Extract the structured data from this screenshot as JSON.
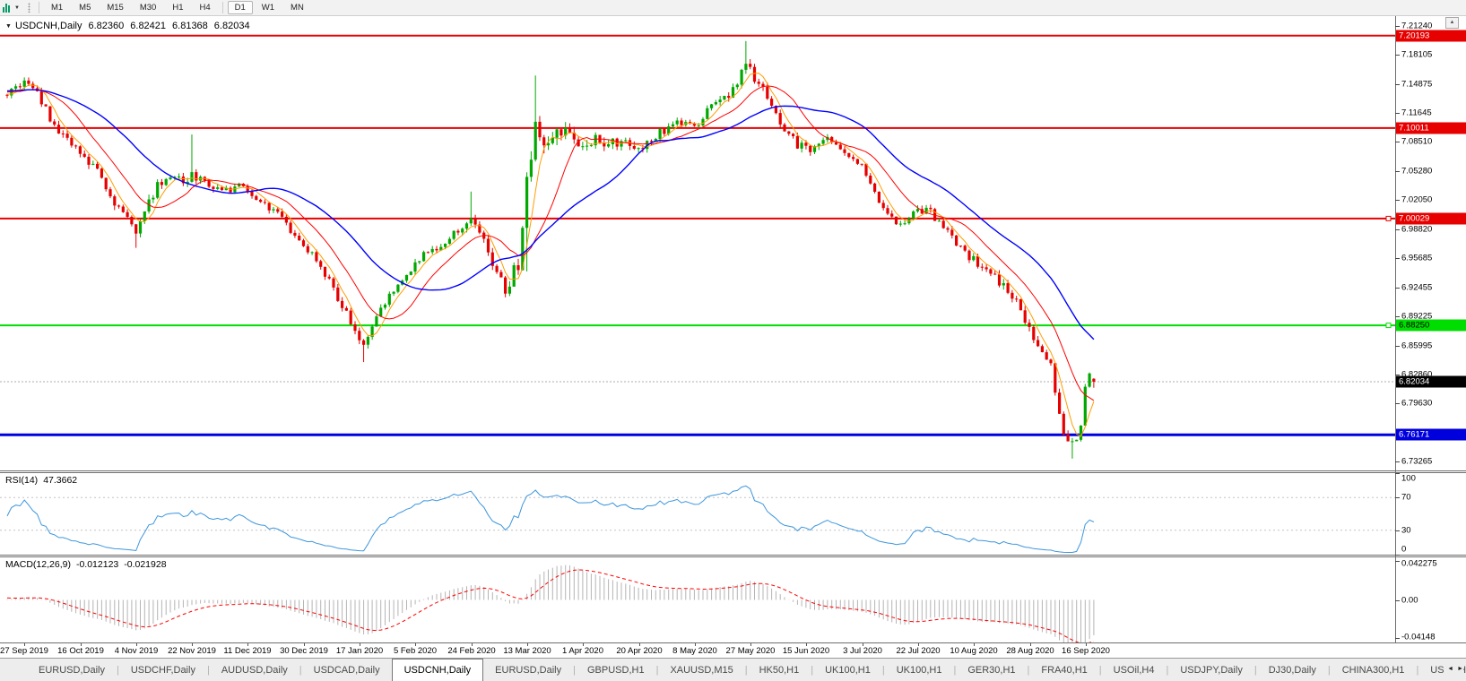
{
  "palette": {
    "up": "#00a800",
    "down": "#e60000",
    "hline_red": "#e60000",
    "hline_green": "#00dd00",
    "hline_blue": "#0000dd",
    "ma_fast": "#ff9d00",
    "ma_mid": "#ff0000",
    "ma_slow": "#0000ff",
    "rsi_line": "#3d96dd",
    "rsi_level": "#c4c4c4",
    "macd_hist": "#b4b4b4",
    "macd_signal": "#ff0000",
    "current_line": "#adadad",
    "current_badge": "#000000",
    "badge_red": "#e60000",
    "badge_green": "#00dd00",
    "badge_blue": "#0000dd"
  },
  "toolbar": {
    "timeframes": [
      "M1",
      "M5",
      "M15",
      "M30",
      "H1",
      "H4",
      "D1",
      "W1",
      "MN"
    ],
    "active_timeframe": "D1",
    "chart_tool_caret": "▼",
    "scroll_up_glyph": "▲"
  },
  "chart": {
    "title": {
      "collapse_glyph": "▼",
      "symbol": "USDCNH,Daily",
      "open": "6.82360",
      "high": "6.82421",
      "low": "6.81368",
      "close": "6.82034"
    },
    "price_axis_ticks": [
      "7.21240",
      "7.18105",
      "7.14875",
      "7.11645",
      "7.08510",
      "7.05280",
      "7.02050",
      "6.98820",
      "6.95685",
      "6.92455",
      "6.89225",
      "6.85995",
      "6.82860",
      "6.79630",
      "6.73265"
    ],
    "badges": [
      {
        "text": "7.20193",
        "value": 7.20193,
        "bg": "badge_red",
        "fg": "#ffffff"
      },
      {
        "text": "7.10011",
        "value": 7.10011,
        "bg": "badge_red",
        "fg": "#ffffff"
      },
      {
        "text": "7.00029",
        "value": 7.00029,
        "bg": "badge_red",
        "fg": "#ffffff"
      },
      {
        "text": "6.88250",
        "value": 6.8825,
        "bg": "badge_green",
        "fg": "#000000"
      },
      {
        "text": "6.82034",
        "value": 6.82034,
        "bg": "current_badge",
        "fg": "#ffffff"
      },
      {
        "text": "6.76171",
        "value": 6.76171,
        "bg": "badge_blue",
        "fg": "#ffffff"
      }
    ],
    "hlines": [
      {
        "value": 7.20193,
        "color": "hline_red",
        "width": 2,
        "handle": false
      },
      {
        "value": 7.10011,
        "color": "hline_red",
        "width": 2,
        "handle": false
      },
      {
        "value": 7.00029,
        "color": "hline_red",
        "width": 2,
        "handle": true
      },
      {
        "value": 6.8825,
        "color": "hline_green",
        "width": 2,
        "handle": true
      },
      {
        "value": 6.76171,
        "color": "hline_blue",
        "width": 3,
        "handle": false
      }
    ],
    "current_price": {
      "text": "6.82034",
      "value": 6.82034
    },
    "date_axis": [
      "27 Sep 2019",
      "16 Oct 2019",
      "4 Nov 2019",
      "22 Nov 2019",
      "11 Dec 2019",
      "30 Dec 2019",
      "17 Jan 2020",
      "5 Feb 2020",
      "24 Feb 2020",
      "13 Mar 2020",
      "1 Apr 2020",
      "20 Apr 2020",
      "8 May 2020",
      "27 May 2020",
      "15 Jun 2020",
      "3 Jul 2020",
      "22 Jul 2020",
      "10 Aug 2020",
      "28 Aug 2020",
      "16 Sep 2020"
    ]
  },
  "rsi": {
    "label": "RSI(14)",
    "value": "47.3662",
    "axis_labels": [
      "100",
      "70",
      "30",
      "0"
    ],
    "axis_values": [
      100,
      70,
      30,
      0
    ],
    "dashed_levels": [
      70,
      30
    ]
  },
  "macd": {
    "label": "MACD(12,26,9)",
    "main_value": "-0.012123",
    "signal_value": "-0.021928",
    "axis_labels": [
      "0.042275",
      "0.00",
      "-0.04148"
    ],
    "axis_values": [
      0.042275,
      0,
      -0.04148
    ]
  },
  "tabs": {
    "items": [
      "EURUSD,Daily",
      "USDCHF,Daily",
      "AUDUSD,Daily",
      "USDCAD,Daily",
      "USDCNH,Daily",
      "EURUSD,Daily",
      "GBPUSD,H1",
      "XAUUSD,M15",
      "HK50,H1",
      "UK100,H1",
      "UK100,H1",
      "GER30,H1",
      "FRA40,H1",
      "USOil,H4",
      "USDJPY,Daily",
      "DJ30,Daily",
      "CHINA300,H1",
      "USOil,H"
    ],
    "active_index": 4,
    "scroll_left_glyph": "◄",
    "scroll_right_glyph": "►"
  },
  "chart_data": {
    "type": "candlestick",
    "symbol": "USDCNH",
    "timeframe": "Daily",
    "title": "USDCNH,Daily",
    "last_ohlc": {
      "open": 6.8236,
      "high": 6.82421,
      "low": 6.81368,
      "close": 6.82034
    },
    "n_candles": 254,
    "prehistory_bars": 60,
    "price_axis_top": 7.2235,
    "price_axis_bottom": 6.7225,
    "close_waypoints": [
      [
        -60,
        7.09
      ],
      [
        -40,
        7.125
      ],
      [
        -20,
        7.145
      ],
      [
        0,
        7.138
      ],
      [
        3,
        7.15
      ],
      [
        6,
        7.145
      ],
      [
        9,
        7.12
      ],
      [
        12,
        7.095
      ],
      [
        15,
        7.082
      ],
      [
        18,
        7.068
      ],
      [
        21,
        7.05
      ],
      [
        24,
        7.028
      ],
      [
        27,
        7.005
      ],
      [
        30,
        6.988
      ],
      [
        32,
        7.012
      ],
      [
        35,
        7.036
      ],
      [
        38,
        7.046
      ],
      [
        41,
        7.04
      ],
      [
        43,
        7.05
      ],
      [
        46,
        7.038
      ],
      [
        50,
        7.03
      ],
      [
        54,
        7.035
      ],
      [
        58,
        7.022
      ],
      [
        62,
        7.01
      ],
      [
        66,
        6.988
      ],
      [
        70,
        6.966
      ],
      [
        74,
        6.938
      ],
      [
        78,
        6.905
      ],
      [
        81,
        6.875
      ],
      [
        83,
        6.86
      ],
      [
        86,
        6.89
      ],
      [
        90,
        6.922
      ],
      [
        94,
        6.945
      ],
      [
        97,
        6.96
      ],
      [
        101,
        6.972
      ],
      [
        105,
        6.988
      ],
      [
        108,
        7.003
      ],
      [
        111,
        6.975
      ],
      [
        114,
        6.94
      ],
      [
        116,
        6.922
      ],
      [
        119,
        6.95
      ],
      [
        121,
        7.04
      ],
      [
        123,
        7.105
      ],
      [
        126,
        7.078
      ],
      [
        129,
        7.1
      ],
      [
        132,
        7.086
      ],
      [
        134,
        7.074
      ],
      [
        137,
        7.092
      ],
      [
        140,
        7.08
      ],
      [
        144,
        7.09
      ],
      [
        147,
        7.078
      ],
      [
        150,
        7.09
      ],
      [
        153,
        7.098
      ],
      [
        156,
        7.11
      ],
      [
        160,
        7.1
      ],
      [
        163,
        7.118
      ],
      [
        166,
        7.13
      ],
      [
        169,
        7.142
      ],
      [
        172,
        7.168
      ],
      [
        175,
        7.15
      ],
      [
        178,
        7.122
      ],
      [
        181,
        7.096
      ],
      [
        184,
        7.082
      ],
      [
        187,
        7.078
      ],
      [
        190,
        7.09
      ],
      [
        193,
        7.078
      ],
      [
        196,
        7.07
      ],
      [
        199,
        7.062
      ],
      [
        202,
        7.03
      ],
      [
        205,
        7.005
      ],
      [
        208,
        6.995
      ],
      [
        211,
        7.006
      ],
      [
        214,
        7.012
      ],
      [
        217,
        6.995
      ],
      [
        220,
        6.978
      ],
      [
        223,
        6.962
      ],
      [
        226,
        6.95
      ],
      [
        229,
        6.938
      ],
      [
        232,
        6.928
      ],
      [
        235,
        6.906
      ],
      [
        238,
        6.88
      ],
      [
        241,
        6.852
      ],
      [
        243,
        6.84
      ],
      [
        245,
        6.78
      ],
      [
        247,
        6.752
      ],
      [
        249,
        6.758
      ],
      [
        250,
        6.772
      ],
      [
        251,
        6.815
      ],
      [
        252,
        6.83
      ],
      [
        253,
        6.82
      ]
    ],
    "volatility_waypoints": [
      [
        -60,
        0.006
      ],
      [
        0,
        0.009
      ],
      [
        30,
        0.012
      ],
      [
        60,
        0.008
      ],
      [
        80,
        0.01
      ],
      [
        100,
        0.008
      ],
      [
        115,
        0.012
      ],
      [
        122,
        0.022
      ],
      [
        135,
        0.014
      ],
      [
        160,
        0.008
      ],
      [
        172,
        0.012
      ],
      [
        200,
        0.008
      ],
      [
        240,
        0.012
      ],
      [
        253,
        0.01
      ]
    ],
    "wick_events": [
      {
        "i": 30,
        "low": 6.968
      },
      {
        "i": 43,
        "high": 7.093
      },
      {
        "i": 83,
        "low": 6.842
      },
      {
        "i": 108,
        "high": 7.03
      },
      {
        "i": 121,
        "low": 6.942
      },
      {
        "i": 123,
        "high": 7.158
      },
      {
        "i": 172,
        "high": 7.196
      },
      {
        "i": 248,
        "low": 6.7355
      }
    ],
    "overlays": [
      {
        "name": "MA fast",
        "period": 5,
        "color": "ma_fast"
      },
      {
        "name": "MA mid",
        "period": 13,
        "color": "ma_mid"
      },
      {
        "name": "MA slow",
        "period": 30,
        "color": "ma_slow"
      }
    ],
    "indicators": [
      {
        "name": "RSI",
        "period": 14,
        "current": 47.3662,
        "range": [
          0,
          100
        ],
        "levels": [
          70,
          30
        ]
      },
      {
        "name": "MACD",
        "fast": 12,
        "slow": 26,
        "signal": 9,
        "current_main": -0.012123,
        "current_signal": -0.021928,
        "axis_max": 0.042275,
        "axis_min": -0.04148
      }
    ]
  }
}
